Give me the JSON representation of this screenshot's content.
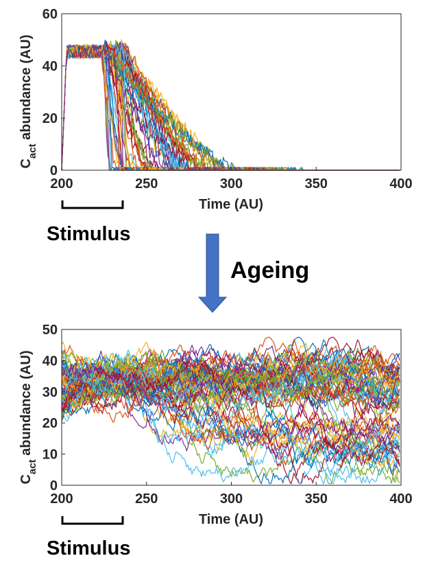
{
  "figure": {
    "stimulus_label": "Stimulus",
    "ageing_label": "Ageing",
    "arrow_color": "#4472C4",
    "bracket_color": "#000000"
  },
  "chart_data": [
    {
      "type": "line",
      "panel": "top",
      "xlabel": "Time (AU)",
      "ylabel_main": "C",
      "ylabel_sub": "act",
      "ylabel_rest": " abundance (AU)",
      "xlim": [
        200,
        400
      ],
      "ylim": [
        0,
        60
      ],
      "xticks": [
        200,
        250,
        300,
        350,
        400
      ],
      "yticks": [
        0,
        20,
        40,
        60
      ],
      "n_traces": 60,
      "stimulus_window": [
        200,
        236
      ],
      "description_of_traces": "all traces rise to ~47-50 during stimulus, then decay to 0 between ~225 and ~312",
      "peak_level": 48,
      "decay_end_range": [
        228,
        312
      ],
      "grid": false
    },
    {
      "type": "line",
      "panel": "bottom",
      "xlabel": "Time (AU)",
      "ylabel_main": "C",
      "ylabel_sub": "act",
      "ylabel_rest": " abundance (AU)",
      "xlim": [
        200,
        400
      ],
      "ylim": [
        0,
        50
      ],
      "xticks": [
        200,
        250,
        300,
        350,
        400
      ],
      "yticks": [
        0,
        10,
        20,
        30,
        40,
        50
      ],
      "n_traces": 70,
      "stimulus_window": [
        200,
        236
      ],
      "description_of_traces": "traces fluctuate stochastically between ~2 and ~47 for the whole window, no decay to zero",
      "range_of_values": [
        0,
        48
      ],
      "grid": false
    }
  ],
  "palette": [
    "#0072BD",
    "#D95319",
    "#EDB120",
    "#7E2F8E",
    "#77AC30",
    "#4DBEEE",
    "#A2142F"
  ]
}
